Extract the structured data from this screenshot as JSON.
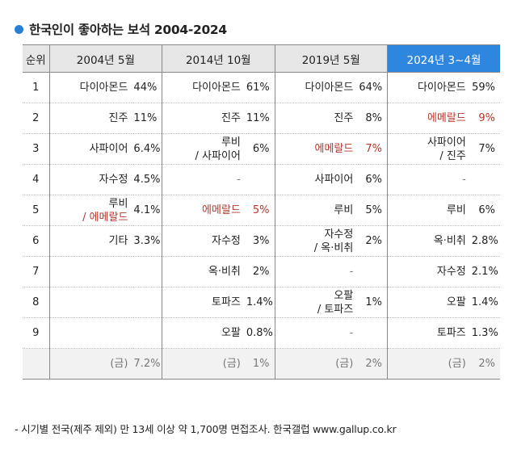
{
  "title": "한국인이 좋아하는 보석 2004-2024",
  "accent_color": "#2e86de",
  "emerald_color": "#b5362c",
  "chart_data": {
    "type": "table",
    "title": "한국인이 좋아하는 보석 2004-2024",
    "rank_header": "순위",
    "columns": [
      {
        "label": "2004년 5월",
        "highlight": false,
        "rows": [
          {
            "name": "다이아몬드",
            "pct": "44%"
          },
          {
            "name": "진주",
            "pct": "11%"
          },
          {
            "name": "사파이어",
            "pct": "6.4%"
          },
          {
            "name": "자수정",
            "pct": "4.5%"
          },
          {
            "name": "루비",
            "name2": "/ 에메랄드",
            "pct": "4.1%"
          },
          {
            "name": "기타",
            "pct": "3.3%"
          },
          {
            "name": "",
            "pct": ""
          },
          {
            "name": "",
            "pct": ""
          },
          {
            "name": "",
            "pct": ""
          },
          {
            "name": "(금)",
            "pct": "7.2%"
          }
        ]
      },
      {
        "label": "2014년 10월",
        "highlight": false,
        "rows": [
          {
            "name": "다이아몬드",
            "pct": "61%"
          },
          {
            "name": "진주",
            "pct": "11%"
          },
          {
            "name": "루비",
            "name2": "/ 사파이어",
            "pct": "6%"
          },
          {
            "name": "-",
            "pct": ""
          },
          {
            "name": "에메랄드",
            "pct": "5%"
          },
          {
            "name": "자수정",
            "pct": "3%"
          },
          {
            "name": "옥·비취",
            "pct": "2%"
          },
          {
            "name": "토파즈",
            "pct": "1.4%"
          },
          {
            "name": "오팔",
            "pct": "0.8%"
          },
          {
            "name": "(금)",
            "pct": "1%"
          }
        ]
      },
      {
        "label": "2019년 5월",
        "highlight": false,
        "rows": [
          {
            "name": "다이아몬드",
            "pct": "64%"
          },
          {
            "name": "진주",
            "pct": "8%"
          },
          {
            "name": "에메랄드",
            "pct": "7%"
          },
          {
            "name": "사파이어",
            "pct": "6%"
          },
          {
            "name": "루비",
            "pct": "5%"
          },
          {
            "name": "자수정",
            "name2": "/ 옥·비취",
            "pct": "2%"
          },
          {
            "name": "-",
            "pct": ""
          },
          {
            "name": "오팔",
            "name2": "/ 토파즈",
            "pct": "1%"
          },
          {
            "name": "-",
            "pct": ""
          },
          {
            "name": "(금)",
            "pct": "2%"
          }
        ]
      },
      {
        "label": "2024년 3~4월",
        "highlight": true,
        "rows": [
          {
            "name": "다이아몬드",
            "pct": "59%"
          },
          {
            "name": "에메랄드",
            "pct": "9%"
          },
          {
            "name": "사파이어",
            "name2": "/ 진주",
            "pct": "7%"
          },
          {
            "name": "-",
            "pct": ""
          },
          {
            "name": "루비",
            "pct": "6%"
          },
          {
            "name": "옥·비취",
            "pct": "2.8%"
          },
          {
            "name": "자수정",
            "pct": "2.1%"
          },
          {
            "name": "오팔",
            "pct": "1.4%"
          },
          {
            "name": "토파즈",
            "pct": "1.3%"
          },
          {
            "name": "(금)",
            "pct": "2%"
          }
        ]
      }
    ],
    "ranks": [
      "1",
      "2",
      "3",
      "4",
      "5",
      "6",
      "7",
      "8",
      "9",
      ""
    ]
  },
  "footnote": "- 시기별 전국(제주 제외) 만 13세 이상 약 1,700명 면접조사. 한국갤럽 www.gallup.co.kr"
}
